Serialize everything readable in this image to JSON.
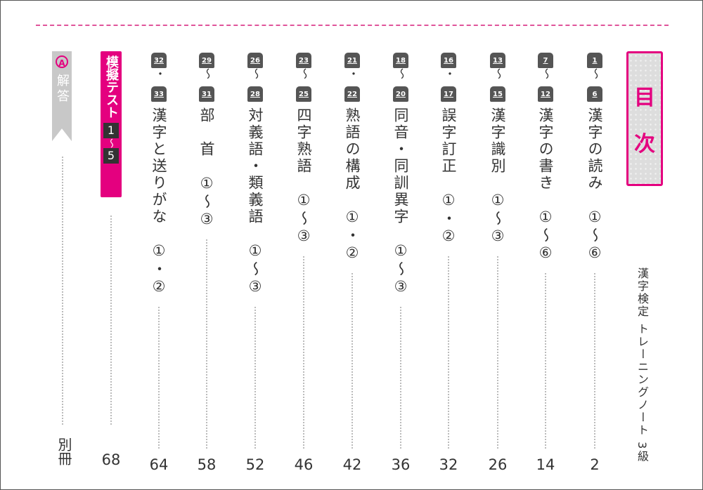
{
  "header": {
    "title_1": "目",
    "title_2": "次"
  },
  "subtitle": "漢字検定 トレーニングノート 3級",
  "accent_color": "#e4007f",
  "entries": [
    {
      "from": "1",
      "sep": "～",
      "to": "6",
      "title": "漢字の読み",
      "range": "①～⑥",
      "page": "2"
    },
    {
      "from": "7",
      "sep": "～",
      "to": "12",
      "title": "漢字の書き",
      "range": "①～⑥",
      "page": "14"
    },
    {
      "from": "13",
      "sep": "～",
      "to": "15",
      "title": "漢字識別",
      "range": "①～③",
      "page": "26"
    },
    {
      "from": "16",
      "sep": "・",
      "to": "17",
      "title": "誤字訂正",
      "range": "①・②",
      "page": "32"
    },
    {
      "from": "18",
      "sep": "～",
      "to": "20",
      "title": "同音・同訓異字",
      "range": "①～③",
      "page": "36"
    },
    {
      "from": "21",
      "sep": "・",
      "to": "22",
      "title": "熟語の構成",
      "range": "①・②",
      "page": "42"
    },
    {
      "from": "23",
      "sep": "～",
      "to": "25",
      "title": "四字熟語",
      "range": "①～③",
      "page": "46"
    },
    {
      "from": "26",
      "sep": "～",
      "to": "28",
      "title": "対義語・類義語",
      "range": "①～③",
      "page": "52"
    },
    {
      "from": "29",
      "sep": "～",
      "to": "31",
      "title": "部　首",
      "range": "①～③",
      "page": "58"
    },
    {
      "from": "32",
      "sep": "・",
      "to": "33",
      "title": "漢字と送りがな",
      "range": "①・②",
      "page": "64"
    }
  ],
  "mock": {
    "label": "模擬テスト",
    "from": "1",
    "sep": "～",
    "to": "5",
    "page": "68"
  },
  "answers": {
    "icon": "lightbulb-a-icon",
    "icon_letter": "A",
    "label": "解答",
    "page": "別冊"
  }
}
